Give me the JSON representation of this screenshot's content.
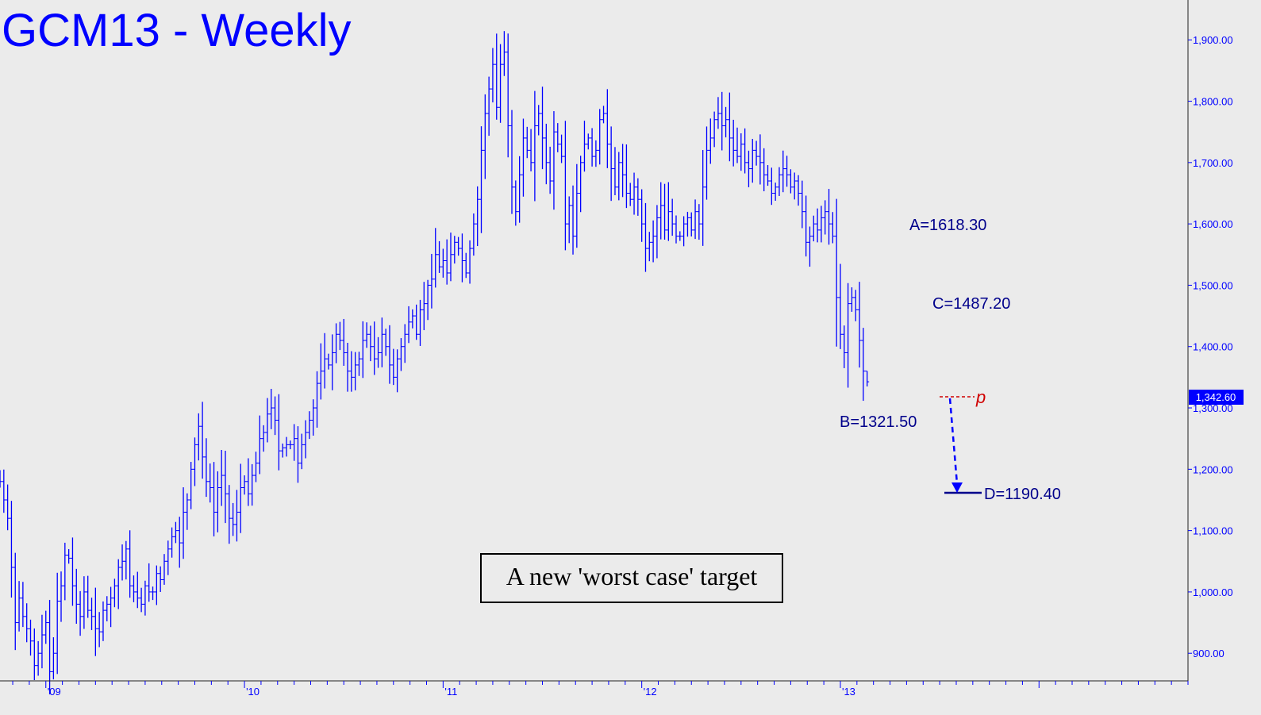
{
  "chart_data": {
    "type": "ohlc",
    "title": "GCM13 - Weekly",
    "ylim": [
      855,
      1965
    ],
    "y_ticks": [
      "900.00",
      "1,000.00",
      "1,100.00",
      "1,200.00",
      "1,300.00",
      "1,400.00",
      "1,500.00",
      "1,600.00",
      "1,700.00",
      "1,800.00",
      "1,900.00"
    ],
    "y_tick_values": [
      900,
      1000,
      1100,
      1200,
      1300,
      1400,
      1500,
      1600,
      1700,
      1800,
      1900
    ],
    "x_ticks": [
      "'09",
      "'10",
      "'11",
      "'12",
      "'13"
    ],
    "x_tick_weeks": [
      0,
      52,
      104,
      156,
      208
    ],
    "weeks_shown": [
      -12,
      299
    ],
    "last_price": 1342.6,
    "last_price_label": "1,342.60",
    "colors": {
      "bars": "#0000ff",
      "background": "#ebebeb",
      "annotation": "#00008b",
      "pivot": "#d00000",
      "label_box": "#0000ff"
    },
    "key_points": [
      {
        "label": "A=1618.30",
        "value": 1618.3
      },
      {
        "label": "B=1321.50",
        "value": 1321.5
      },
      {
        "label": "C=1487.20",
        "value": 1487.2
      },
      {
        "label": "D=1190.40",
        "value": 1190.4
      }
    ],
    "pivot_label": "p",
    "pivot_value": 1340,
    "annotation_box": "A new 'worst case' target",
    "series": [
      {
        "weekly_closes": [
          1180,
          1150,
          1120,
          1040,
          950,
          990,
          960,
          940,
          920,
          880,
          900,
          930,
          950,
          870,
          900,
          985,
          1010,
          1060,
          1055,
          1010,
          980,
          960,
          1000,
          970,
          960,
          940,
          935,
          970,
          980,
          990,
          1010,
          1040,
          1050,
          1070,
          1010,
          1000,
          990,
          980,
          1010,
          1000,
          1000,
          1030,
          1020,
          1050,
          1070,
          1090,
          1100,
          1080,
          1130,
          1150,
          1200,
          1240,
          1270,
          1220,
          1180,
          1170,
          1130,
          1170,
          1190,
          1160,
          1120,
          1110,
          1130,
          1170,
          1180,
          1160,
          1190,
          1210,
          1250,
          1260,
          1290,
          1300,
          1280,
          1230,
          1235,
          1240,
          1240,
          1250,
          1210,
          1240,
          1260,
          1280,
          1300,
          1340,
          1360,
          1380,
          1370,
          1390,
          1420,
          1410,
          1390,
          1360,
          1350,
          1370,
          1380,
          1410,
          1420,
          1400,
          1380,
          1390,
          1420,
          1400,
          1370,
          1350,
          1380,
          1400,
          1420,
          1440,
          1450,
          1420,
          1460,
          1470,
          1500,
          1510,
          1550,
          1530,
          1540,
          1520,
          1550,
          1570,
          1560,
          1540,
          1520,
          1560,
          1600,
          1640,
          1720,
          1780,
          1820,
          1860,
          1790,
          1860,
          1880,
          1760,
          1660,
          1620,
          1680,
          1740,
          1720,
          1700,
          1760,
          1780,
          1740,
          1700,
          1670,
          1750,
          1730,
          1710,
          1600,
          1630,
          1580,
          1650,
          1700,
          1730,
          1740,
          1710,
          1720,
          1770,
          1780,
          1730,
          1690,
          1660,
          1700,
          1680,
          1650,
          1640,
          1660,
          1640,
          1600,
          1560,
          1570,
          1580,
          1610,
          1630,
          1590,
          1620,
          1600,
          1580,
          1580,
          1600,
          1610,
          1590,
          1620,
          1600,
          1660,
          1720,
          1740,
          1770,
          1780,
          1760,
          1770,
          1740,
          1720,
          1710,
          1730,
          1700,
          1690,
          1720,
          1710,
          1700,
          1680,
          1670,
          1650,
          1660,
          1680,
          1690,
          1680,
          1660,
          1670,
          1650,
          1620,
          1570,
          1580,
          1600,
          1590,
          1610,
          1620,
          1600,
          1580,
          1480,
          1420,
          1390,
          1470,
          1480,
          1460,
          1410,
          1360,
          1342.6
        ]
      }
    ]
  }
}
